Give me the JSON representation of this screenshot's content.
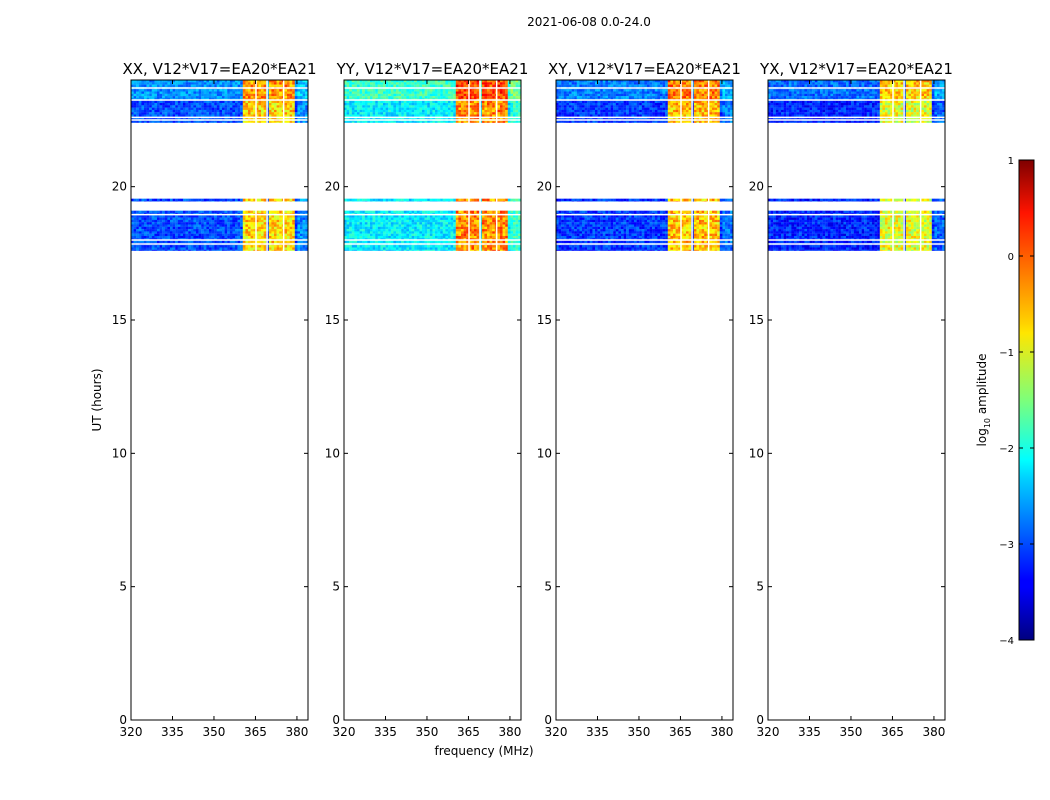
{
  "chart_data": {
    "type": "heatmap",
    "suptitle": "2021-06-08 0.0-24.0",
    "xlabel": "frequency (MHz)",
    "ylabel": "UT (hours)",
    "xlim": [
      320,
      384
    ],
    "ylim": [
      0,
      24
    ],
    "x_ticks": [
      320,
      335,
      350,
      365,
      380
    ],
    "y_ticks": [
      0,
      5,
      10,
      15,
      20
    ],
    "panels": [
      {
        "title": "XX, V12*V17=EA20*EA21",
        "base_level": -3.0,
        "band_level": -0.7
      },
      {
        "title": "YY, V12*V17=EA20*EA21",
        "base_level": -2.2,
        "band_level": -0.3
      },
      {
        "title": "XY, V12*V17=EA20*EA21",
        "base_level": -3.1,
        "band_level": -0.6
      },
      {
        "title": "YX, V12*V17=EA20*EA21",
        "base_level": -3.2,
        "band_level": -1.0
      }
    ],
    "data_time_ranges_hours": [
      [
        17.6,
        19.1
      ],
      [
        19.45,
        19.55
      ],
      [
        22.4,
        24.0
      ]
    ],
    "bright_freq_ranges_mhz": [
      [
        360.5,
        365
      ],
      [
        365.5,
        369
      ],
      [
        369.5,
        375
      ],
      [
        375.5,
        379.5
      ]
    ],
    "colorbar": {
      "label": "log",
      "label_sub": "10",
      "label_rest": " amplitude",
      "range": [
        -4,
        1
      ],
      "ticks": [
        -4,
        -3,
        -2,
        -1,
        0,
        1
      ],
      "tick_labels": [
        "−4",
        "−3",
        "−2",
        "−1",
        "0",
        "1"
      ],
      "colormap": "jet"
    }
  }
}
